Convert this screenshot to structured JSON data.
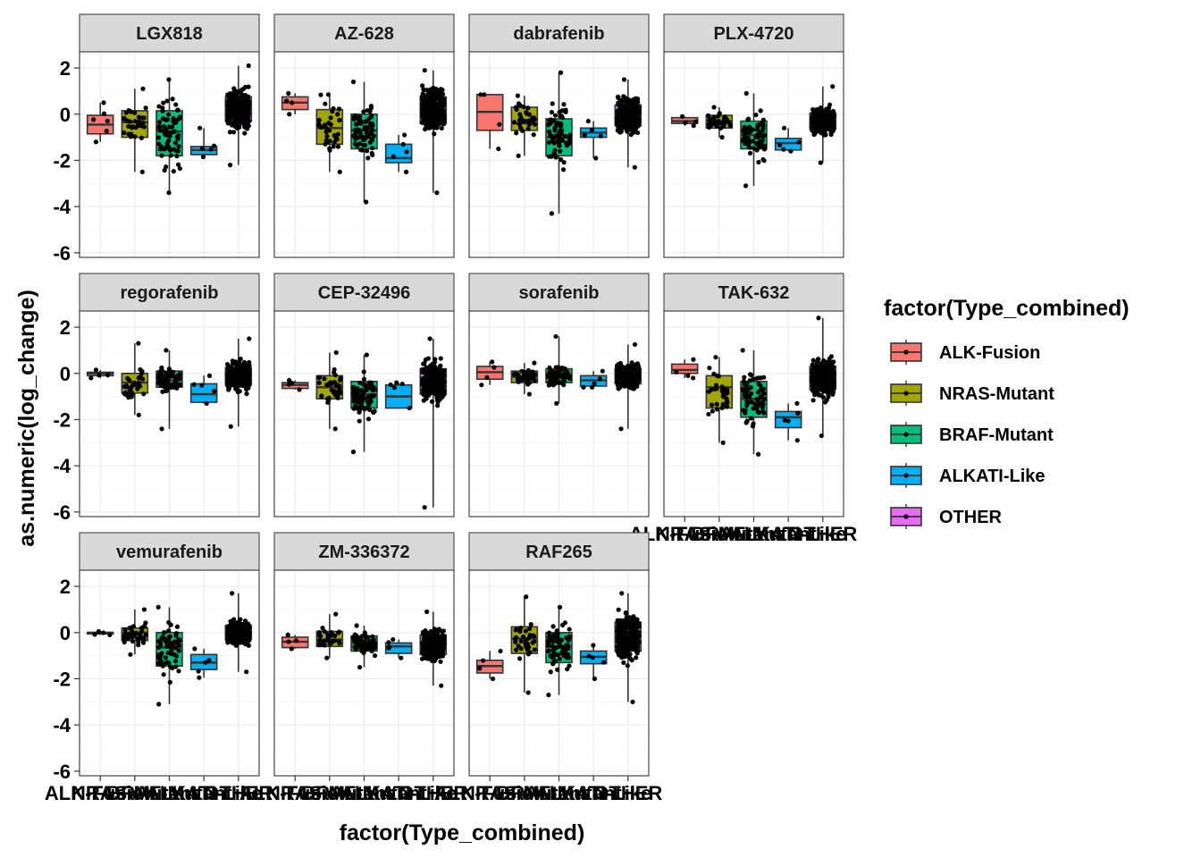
{
  "chart_data": {
    "type": "box",
    "layout": "facet_wrap",
    "xlabel": "factor(Type_combined)",
    "ylabel": "as.numeric(log_change)",
    "ylim": [
      -6.2,
      2.7
    ],
    "yticks": [
      2,
      0,
      -2,
      -4,
      -6
    ],
    "ytick_labels": [
      "2",
      "0",
      "-2",
      "-4",
      "-6"
    ],
    "grid": true,
    "categories": [
      "ALK-Fusion",
      "NRAS-Mutant",
      "BRAF-Mutant",
      "ALKATI-Like",
      "OTHER"
    ],
    "x_tick_labels": [
      "ALK-Fusion",
      "NRAS-Mutant",
      "BRAF-Mutant",
      "ALKATI-Like",
      "OTHER"
    ],
    "colors": [
      "#F8766D",
      "#A3A500",
      "#00BF7D",
      "#00B0F6",
      "#E76BF3"
    ],
    "legend": {
      "title": "factor(Type_combined)",
      "position": "right",
      "entries": [
        "ALK-Fusion",
        "NRAS-Mutant",
        "BRAF-Mutant",
        "ALKATI-Like",
        "OTHER"
      ]
    },
    "facets": [
      {
        "name": "LGX818",
        "boxes": [
          {
            "min": -1.2,
            "q1": -0.85,
            "median": -0.45,
            "q3": -0.05,
            "max": 0.5,
            "n": 6
          },
          {
            "min": -2.5,
            "q1": -1.0,
            "median": -0.35,
            "q3": 0.15,
            "max": 1.1,
            "n": 35
          },
          {
            "min": -3.4,
            "q1": -1.8,
            "median": -0.75,
            "q3": 0.15,
            "max": 1.5,
            "n": 70
          },
          {
            "min": -1.85,
            "q1": -1.75,
            "median": -1.55,
            "q3": -1.4,
            "max": -0.6,
            "n": 5
          },
          {
            "min": -2.2,
            "q1": -0.3,
            "median": 0.3,
            "q3": 0.75,
            "max": 2.1,
            "n": 300
          }
        ]
      },
      {
        "name": "AZ-628",
        "boxes": [
          {
            "min": 0.0,
            "q1": 0.2,
            "median": 0.5,
            "q3": 0.75,
            "max": 0.9,
            "n": 4
          },
          {
            "min": -2.5,
            "q1": -1.3,
            "median": -0.6,
            "q3": 0.2,
            "max": 0.85,
            "n": 35
          },
          {
            "min": -3.8,
            "q1": -1.5,
            "median": -0.7,
            "q3": 0.0,
            "max": 1.4,
            "n": 70
          },
          {
            "min": -2.5,
            "q1": -2.1,
            "median": -1.9,
            "q3": -1.3,
            "max": -0.9,
            "n": 5
          },
          {
            "min": -3.4,
            "q1": -0.4,
            "median": 0.2,
            "q3": 0.75,
            "max": 1.9,
            "n": 300
          }
        ]
      },
      {
        "name": "dabrafenib",
        "boxes": [
          {
            "min": -1.5,
            "q1": -0.7,
            "median": 0.1,
            "q3": 0.85,
            "max": 0.85,
            "n": 4
          },
          {
            "min": -1.8,
            "q1": -0.7,
            "median": -0.4,
            "q3": 0.3,
            "max": 0.8,
            "n": 35
          },
          {
            "min": -4.3,
            "q1": -1.8,
            "median": -1.0,
            "q3": -0.2,
            "max": 1.8,
            "n": 70
          },
          {
            "min": -1.9,
            "q1": -1.0,
            "median": -0.8,
            "q3": -0.6,
            "max": -0.3,
            "n": 5
          },
          {
            "min": -2.3,
            "q1": -0.5,
            "median": 0.0,
            "q3": 0.4,
            "max": 1.5,
            "n": 300
          }
        ]
      },
      {
        "name": "PLX-4720",
        "boxes": [
          {
            "min": -0.5,
            "q1": -0.4,
            "median": -0.3,
            "q3": -0.15,
            "max": -0.1,
            "n": 4
          },
          {
            "min": -1.0,
            "q1": -0.6,
            "median": -0.4,
            "q3": -0.05,
            "max": 0.3,
            "n": 35
          },
          {
            "min": -3.1,
            "q1": -1.5,
            "median": -0.9,
            "q3": -0.3,
            "max": 0.9,
            "n": 70
          },
          {
            "min": -1.6,
            "q1": -1.55,
            "median": -1.25,
            "q3": -1.05,
            "max": -0.6,
            "n": 5
          },
          {
            "min": -2.1,
            "q1": -0.65,
            "median": -0.25,
            "q3": 0.05,
            "max": 1.2,
            "n": 300
          }
        ]
      },
      {
        "name": "regorafenib",
        "boxes": [
          {
            "min": -0.2,
            "q1": -0.1,
            "median": 0.0,
            "q3": 0.05,
            "max": 0.15,
            "n": 4
          },
          {
            "min": -1.8,
            "q1": -0.85,
            "median": -0.4,
            "q3": 0.0,
            "max": 1.3,
            "n": 35
          },
          {
            "min": -2.4,
            "q1": -0.6,
            "median": -0.3,
            "q3": 0.1,
            "max": 1.0,
            "n": 70
          },
          {
            "min": -1.3,
            "q1": -1.25,
            "median": -0.9,
            "q3": -0.45,
            "max": -0.1,
            "n": 5
          },
          {
            "min": -2.3,
            "q1": -0.5,
            "median": -0.05,
            "q3": 0.25,
            "max": 1.5,
            "n": 300
          }
        ]
      },
      {
        "name": "CEP-32496",
        "boxes": [
          {
            "min": -0.7,
            "q1": -0.65,
            "median": -0.5,
            "q3": -0.4,
            "max": -0.3,
            "n": 4
          },
          {
            "min": -2.4,
            "q1": -1.1,
            "median": -0.6,
            "q3": -0.1,
            "max": 0.9,
            "n": 35
          },
          {
            "min": -3.4,
            "q1": -1.5,
            "median": -0.9,
            "q3": -0.35,
            "max": 0.8,
            "n": 70
          },
          {
            "min": -1.5,
            "q1": -1.5,
            "median": -1.0,
            "q3": -0.5,
            "max": -0.4,
            "n": 5
          },
          {
            "min": -5.8,
            "q1": -0.9,
            "median": -0.3,
            "q3": 0.2,
            "max": 1.5,
            "n": 300
          }
        ]
      },
      {
        "name": "sorafenib",
        "boxes": [
          {
            "min": -0.5,
            "q1": -0.25,
            "median": 0.05,
            "q3": 0.3,
            "max": 0.5,
            "n": 4
          },
          {
            "min": -0.9,
            "q1": -0.4,
            "median": -0.15,
            "q3": 0.1,
            "max": 0.45,
            "n": 35
          },
          {
            "min": -1.3,
            "q1": -0.4,
            "median": -0.05,
            "q3": 0.2,
            "max": 1.6,
            "n": 70
          },
          {
            "min": -0.6,
            "q1": -0.55,
            "median": -0.3,
            "q3": -0.1,
            "max": 0.1,
            "n": 5
          },
          {
            "min": -2.4,
            "q1": -0.45,
            "median": -0.05,
            "q3": 0.2,
            "max": 1.25,
            "n": 300
          }
        ]
      },
      {
        "name": "TAK-632",
        "boxes": [
          {
            "min": -0.2,
            "q1": 0.0,
            "median": 0.15,
            "q3": 0.4,
            "max": 0.6,
            "n": 4
          },
          {
            "min": -3.0,
            "q1": -1.5,
            "median": -0.6,
            "q3": -0.1,
            "max": 0.7,
            "n": 35
          },
          {
            "min": -3.5,
            "q1": -1.9,
            "median": -1.1,
            "q3": -0.35,
            "max": 1.0,
            "n": 70
          },
          {
            "min": -2.9,
            "q1": -2.35,
            "median": -1.9,
            "q3": -1.65,
            "max": -1.3,
            "n": 5
          },
          {
            "min": -2.7,
            "q1": -0.7,
            "median": -0.1,
            "q3": 0.3,
            "max": 2.4,
            "n": 300
          }
        ]
      },
      {
        "name": "vemurafenib",
        "boxes": [
          {
            "min": -0.1,
            "q1": -0.05,
            "median": 0.0,
            "q3": 0.0,
            "max": 0.05,
            "n": 4
          },
          {
            "min": -0.95,
            "q1": -0.35,
            "median": 0.0,
            "q3": 0.2,
            "max": 1.0,
            "n": 35
          },
          {
            "min": -3.1,
            "q1": -1.45,
            "median": -0.65,
            "q3": 0.0,
            "max": 1.1,
            "n": 70
          },
          {
            "min": -1.95,
            "q1": -1.6,
            "median": -1.3,
            "q3": -0.95,
            "max": -0.7,
            "n": 5
          },
          {
            "min": -1.7,
            "q1": -0.3,
            "median": 0.05,
            "q3": 0.3,
            "max": 1.7,
            "n": 300
          }
        ]
      },
      {
        "name": "ZM-336372",
        "boxes": [
          {
            "min": -0.7,
            "q1": -0.65,
            "median": -0.4,
            "q3": -0.2,
            "max": -0.1,
            "n": 4
          },
          {
            "min": -1.1,
            "q1": -0.6,
            "median": -0.3,
            "q3": 0.05,
            "max": 0.8,
            "n": 35
          },
          {
            "min": -1.5,
            "q1": -0.8,
            "median": -0.45,
            "q3": -0.15,
            "max": 0.3,
            "n": 70
          },
          {
            "min": -1.1,
            "q1": -0.9,
            "median": -0.6,
            "q3": -0.45,
            "max": -0.3,
            "n": 5
          },
          {
            "min": -2.3,
            "q1": -0.95,
            "median": -0.45,
            "q3": -0.1,
            "max": 0.9,
            "n": 300
          }
        ]
      },
      {
        "name": "RAF265",
        "boxes": [
          {
            "min": -2.0,
            "q1": -1.75,
            "median": -1.45,
            "q3": -1.2,
            "max": -0.8,
            "n": 4
          },
          {
            "min": -2.6,
            "q1": -0.9,
            "median": -0.25,
            "q3": 0.25,
            "max": 1.55,
            "n": 35
          },
          {
            "min": -2.7,
            "q1": -1.3,
            "median": -0.6,
            "q3": 0.0,
            "max": 1.1,
            "n": 70
          },
          {
            "min": -2.0,
            "q1": -1.35,
            "median": -1.05,
            "q3": -0.8,
            "max": -0.55,
            "n": 5
          },
          {
            "min": -3.0,
            "q1": -0.8,
            "median": -0.15,
            "q3": 0.45,
            "max": 1.7,
            "n": 300
          }
        ]
      }
    ]
  }
}
